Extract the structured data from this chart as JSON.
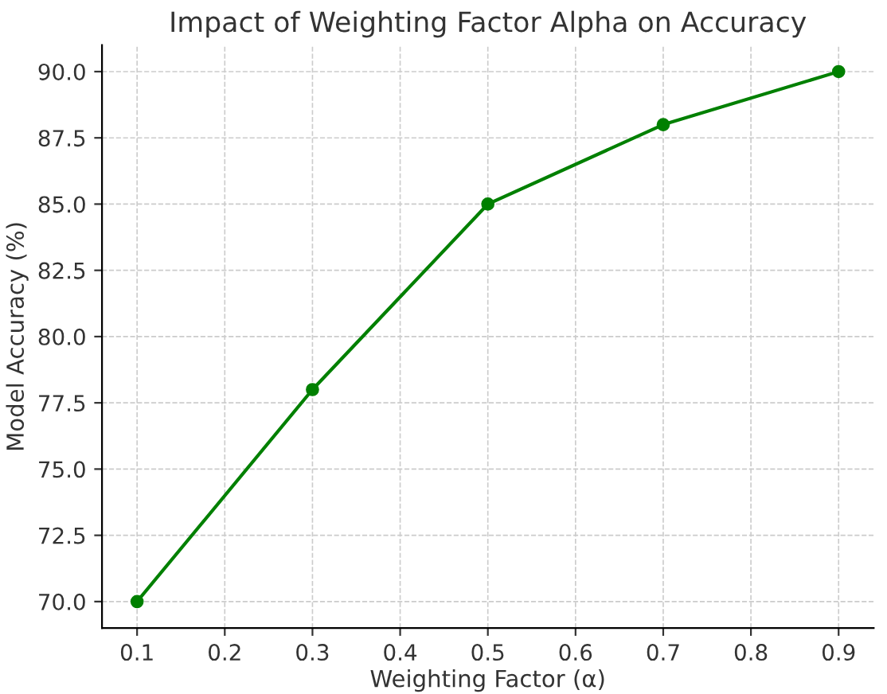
{
  "chart_data": {
    "type": "line",
    "title": "Impact of Weighting Factor Alpha on Accuracy",
    "xlabel": "Weighting Factor (α)",
    "ylabel": "Model Accuracy (%)",
    "x": [
      0.1,
      0.3,
      0.5,
      0.7,
      0.9
    ],
    "series": [
      {
        "color": "#008000",
        "values": [
          70,
          78,
          85,
          88,
          90
        ]
      }
    ],
    "xlim": [
      0.06,
      0.94
    ],
    "ylim": [
      69,
      91
    ],
    "xticks": [
      0.1,
      0.2,
      0.3,
      0.4,
      0.5,
      0.6,
      0.7,
      0.8,
      0.9
    ],
    "yticks": [
      {
        "value": 70,
        "label": "70.0"
      },
      {
        "value": 72.5,
        "label": "72.5"
      },
      {
        "value": 75,
        "label": "75.0"
      },
      {
        "value": 77.5,
        "label": "77.5"
      },
      {
        "value": 80,
        "label": "80.0"
      },
      {
        "value": 82.5,
        "label": "82.5"
      },
      {
        "value": 85,
        "label": "85.0"
      },
      {
        "value": 87.5,
        "label": "87.5"
      },
      {
        "value": 90,
        "label": "90.0"
      }
    ],
    "grid": true,
    "marker": "circle",
    "line_style": "solid"
  }
}
